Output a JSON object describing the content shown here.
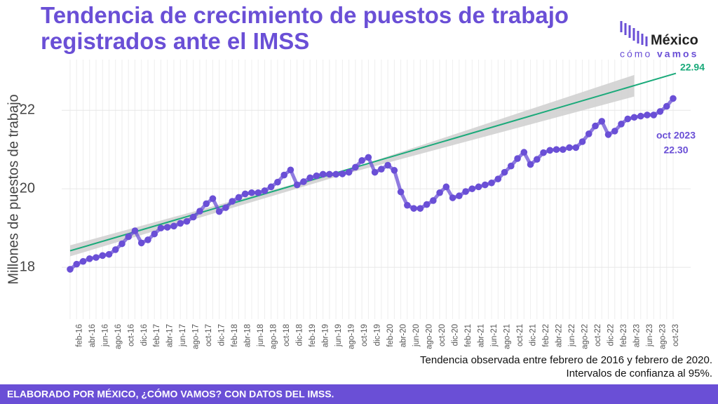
{
  "chart_data": {
    "type": "line",
    "title_lines": [
      "Tendencia de crecimiento de puestos de trabajo",
      "registrados ante el IMSS"
    ],
    "y_label": "Millones de puestos de trabajo",
    "categories": [
      null,
      "feb-16",
      null,
      "abr-16",
      null,
      "jun-16",
      null,
      "ago-16",
      null,
      "oct-16",
      null,
      "dic-16",
      null,
      "feb-17",
      null,
      "abr-17",
      null,
      "jun-17",
      null,
      "ago-17",
      null,
      "oct-17",
      null,
      "dic-17",
      null,
      "feb-18",
      null,
      "abr-18",
      null,
      "jun-18",
      null,
      "ago-18",
      null,
      "oct-18",
      null,
      "dic-18",
      null,
      "feb-19",
      null,
      "abr-19",
      null,
      "jun-19",
      null,
      "ago-19",
      null,
      "oct-19",
      null,
      "dic-19",
      null,
      "feb-20",
      null,
      "abr-20",
      null,
      "jun-20",
      null,
      "ago-20",
      null,
      "oct-20",
      null,
      "dic-20",
      null,
      "feb-21",
      null,
      "abr-21",
      null,
      "jun-21",
      null,
      "ago-21",
      null,
      "oct-21",
      null,
      "dic-21",
      null,
      "feb-22",
      null,
      "abr-22",
      null,
      "jun-22",
      null,
      "ago-22",
      null,
      "oct-22",
      null,
      "dic-22",
      null,
      "feb-23",
      null,
      "abr-23",
      null,
      "jun-23",
      null,
      "ago-23",
      null,
      "oct-23"
    ],
    "series": [
      {
        "color": "#6a4fd6",
        "values": [
          17.95,
          18.08,
          18.15,
          18.22,
          18.25,
          18.3,
          18.33,
          18.45,
          18.6,
          18.78,
          18.93,
          18.62,
          18.7,
          18.85,
          19.0,
          19.02,
          19.05,
          19.12,
          19.17,
          19.28,
          19.43,
          19.62,
          19.75,
          19.42,
          19.52,
          19.68,
          19.78,
          19.87,
          19.9,
          19.9,
          19.95,
          20.05,
          20.17,
          20.35,
          20.48,
          20.1,
          20.18,
          20.28,
          20.33,
          20.37,
          20.37,
          20.37,
          20.38,
          20.42,
          20.55,
          20.72,
          20.8,
          20.42,
          20.5,
          20.6,
          20.47,
          19.92,
          19.58,
          19.5,
          19.5,
          19.6,
          19.7,
          19.9,
          20.05,
          19.77,
          19.82,
          19.93,
          20.0,
          20.05,
          20.1,
          20.15,
          20.25,
          20.42,
          20.58,
          20.77,
          20.93,
          20.62,
          20.75,
          20.92,
          20.98,
          21.0,
          21.0,
          21.05,
          21.05,
          21.2,
          21.4,
          21.6,
          21.72,
          21.38,
          21.47,
          21.65,
          21.78,
          21.82,
          21.85,
          21.88,
          21.88,
          21.97,
          22.1,
          22.3
        ]
      }
    ],
    "trend": {
      "color": "#1aaa7a",
      "values": [
        18.42,
        22.94
      ]
    },
    "band": {
      "color": "#cfcfcf",
      "index": [
        0,
        43,
        87
      ],
      "lower": [
        18.28,
        20.4,
        22.35
      ],
      "upper": [
        18.56,
        20.5,
        22.9
      ]
    },
    "annotations": [
      {
        "text": "oct 2023",
        "value_label": "22.30"
      }
    ],
    "ylim": [
      16.68,
      23.29
    ],
    "yticks": [
      18,
      20,
      22
    ],
    "grid": true,
    "notes": [
      "Tendencia observada entre febrero de 2016 y febrero de 2020.",
      "Intervalos de confianza al 95%."
    ],
    "footer": "ELABORADO POR MÉXICO, ¿CÓMO VAMOS? CON DATOS DEL IMSS.",
    "logo": {
      "line1": "México",
      "line2a": "cómo",
      "line2b": "vamos"
    }
  }
}
